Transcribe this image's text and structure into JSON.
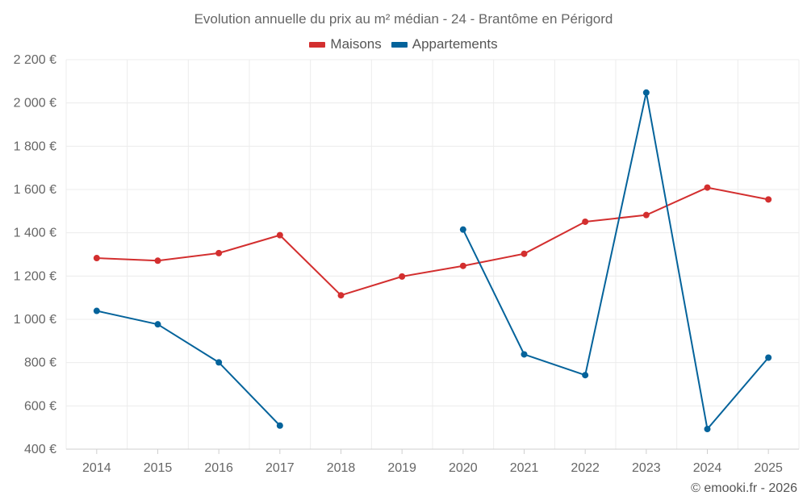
{
  "chart_data": {
    "type": "line",
    "title": "Evolution annuelle du prix au m² médian - 24 - Brantôme en Périgord",
    "xlabel": "",
    "ylabel": "",
    "categories": [
      "2014",
      "2015",
      "2016",
      "2017",
      "2018",
      "2019",
      "2020",
      "2021",
      "2022",
      "2023",
      "2024",
      "2025"
    ],
    "ylim": [
      400,
      2200
    ],
    "yticks": [
      400,
      600,
      800,
      1000,
      1200,
      1400,
      1600,
      1800,
      2000,
      2200
    ],
    "ytick_labels": [
      "400 €",
      "600 €",
      "800 €",
      "1 000 €",
      "1 200 €",
      "1 400 €",
      "1 600 €",
      "1 800 €",
      "2 000 €",
      "2 200 €"
    ],
    "grid": true,
    "legend_position": "top-center",
    "series": [
      {
        "name": "Maisons",
        "color": "#d32f2f",
        "values": [
          1283,
          1271,
          1306,
          1389,
          1111,
          1198,
          1247,
          1303,
          1451,
          1482,
          1609,
          1554
        ]
      },
      {
        "name": "Appartements",
        "color": "#04639b",
        "values": [
          1039,
          977,
          801,
          509,
          null,
          null,
          1415,
          838,
          742,
          2048,
          493,
          823
        ]
      }
    ],
    "credit": "© emooki.fr - 2026"
  }
}
